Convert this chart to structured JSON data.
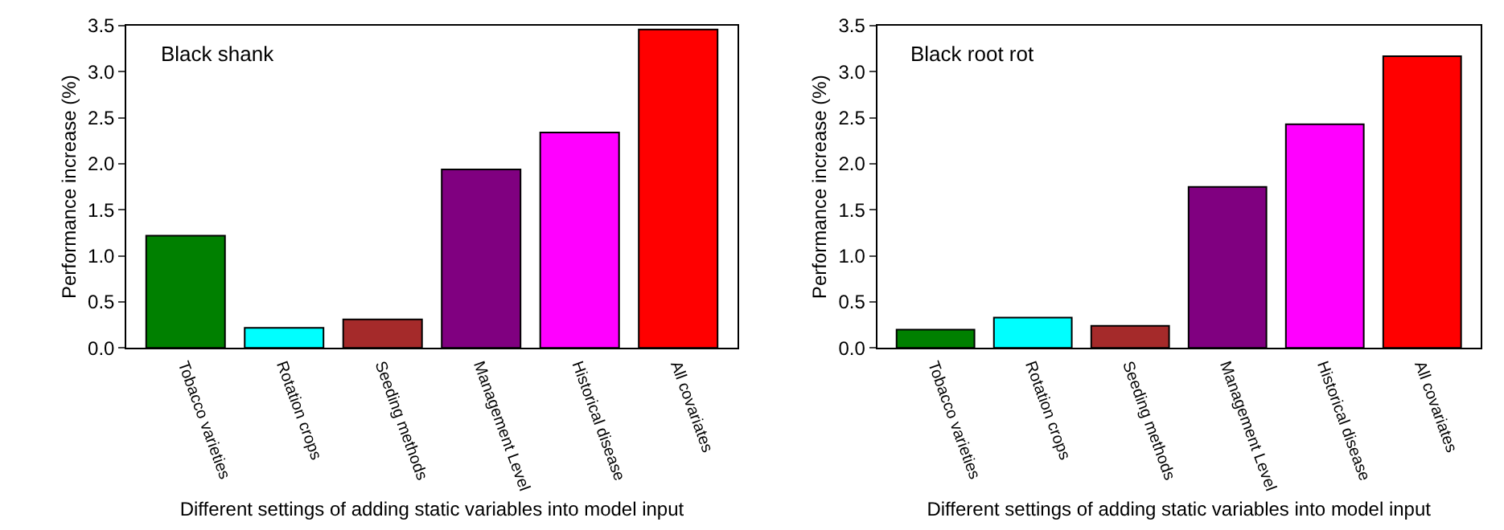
{
  "chart_data": [
    {
      "type": "bar",
      "title": "Black shank",
      "xlabel": "Different settings of adding static variables into model input",
      "ylabel": "Performance increase (%)",
      "categories": [
        "Tobacco varieties",
        "Rotation crops",
        "Seeding methods",
        "Management Level",
        "Historical disease",
        "All covariates"
      ],
      "values": [
        1.22,
        0.22,
        0.31,
        1.94,
        2.34,
        3.46
      ],
      "colors": [
        "#008000",
        "#00ffff",
        "#a52a2a",
        "#800080",
        "#ff00ff",
        "#ff0000"
      ],
      "ylim": [
        0,
        3.5
      ],
      "yticks": [
        {
          "value": 0,
          "label": "0.0"
        },
        0.5,
        {
          "value": 1,
          "label": "1.0"
        },
        1.5,
        {
          "value": 2,
          "label": "2.0"
        },
        2.5,
        {
          "value": 3,
          "label": "3.0"
        },
        3.5
      ]
    },
    {
      "type": "bar",
      "title": "Black root rot",
      "xlabel": "Different settings of adding static variables into model input",
      "ylabel": "Performance increase (%)",
      "categories": [
        "Tobacco varieties",
        "Rotation crops",
        "Seeding methods",
        "Management Level",
        "Historical disease",
        "All covariates"
      ],
      "values": [
        0.2,
        0.33,
        0.24,
        1.75,
        2.43,
        3.17
      ],
      "colors": [
        "#008000",
        "#00ffff",
        "#a52a2a",
        "#800080",
        "#ff00ff",
        "#ff0000"
      ],
      "ylim": [
        0,
        3.5
      ],
      "yticks": [
        {
          "value": 0,
          "label": "0.0"
        },
        0.5,
        {
          "value": 1,
          "label": "1.0"
        },
        1.5,
        {
          "value": 2,
          "label": "2.0"
        },
        2.5,
        {
          "value": 3,
          "label": "3.0"
        },
        3.5
      ]
    }
  ]
}
